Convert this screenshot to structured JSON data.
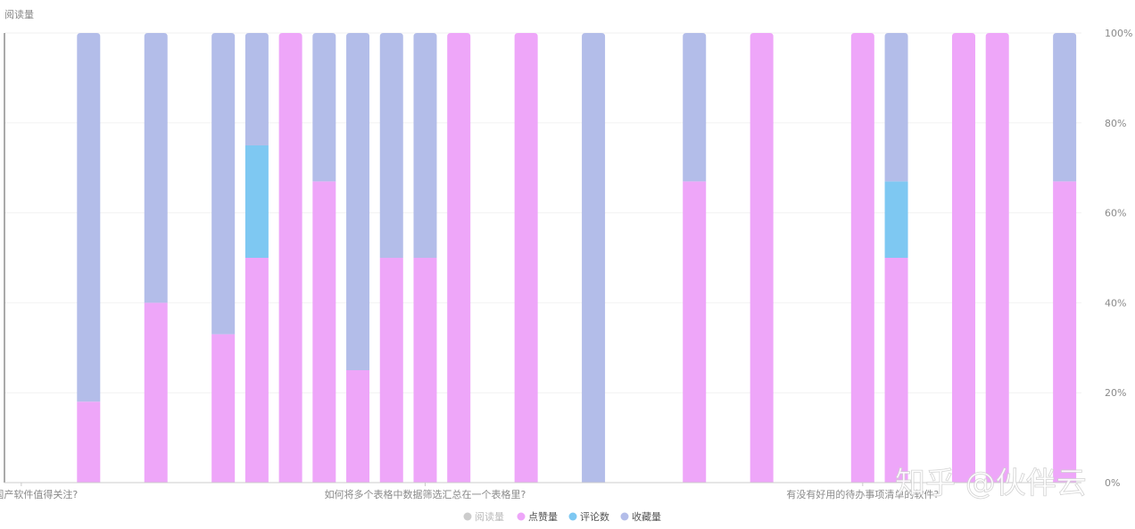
{
  "watermark": "知乎 @伙伴云",
  "chart_data": {
    "type": "bar",
    "stacked": true,
    "percent_stacked": true,
    "ylabel": "阅读量",
    "ylim": [
      0,
      100
    ],
    "yticks": [
      "0%",
      "20%",
      "40%",
      "60%",
      "80%",
      "100%"
    ],
    "y_axis_position": "right",
    "grid": true,
    "legend_position": "bottom-center",
    "x_tick_labels": [
      {
        "category_index": 0,
        "text": "优秀的国产软件值得关注?"
      },
      {
        "category_index": 12,
        "text": "如何将多个表格中数据筛选汇总在一个表格里?"
      },
      {
        "category_index": 25,
        "text": "有没有好用的待办事项清单的软件?"
      }
    ],
    "series": [
      {
        "name": "阅读量",
        "color": "#c0c0c0",
        "hidden": true,
        "values": [
          0,
          0,
          0,
          0,
          0,
          0,
          0,
          0,
          0,
          0,
          0,
          0,
          0,
          0,
          0,
          0,
          0,
          0,
          0,
          0,
          0,
          0,
          0,
          0,
          0,
          0,
          0,
          0,
          0,
          0,
          0,
          0
        ]
      },
      {
        "name": "点赞量",
        "color": "#eea6f9",
        "values": [
          0,
          0,
          18,
          0,
          40,
          0,
          33,
          50,
          100,
          67,
          25,
          50,
          50,
          100,
          0,
          100,
          0,
          0,
          0,
          0,
          67,
          0,
          100,
          0,
          0,
          100,
          50,
          0,
          100,
          100,
          0,
          67
        ]
      },
      {
        "name": "评论数",
        "color": "#7ec8f2",
        "values": [
          0,
          0,
          0,
          0,
          0,
          0,
          0,
          25,
          0,
          0,
          0,
          0,
          0,
          0,
          0,
          0,
          0,
          0,
          0,
          0,
          0,
          0,
          0,
          0,
          0,
          0,
          17,
          0,
          0,
          0,
          0,
          0
        ]
      },
      {
        "name": "收藏量",
        "color": "#b3bde9",
        "values": [
          0,
          0,
          82,
          0,
          60,
          0,
          67,
          25,
          0,
          33,
          75,
          50,
          50,
          0,
          0,
          0,
          0,
          100,
          0,
          0,
          33,
          0,
          0,
          0,
          0,
          0,
          33,
          0,
          0,
          0,
          0,
          33
        ]
      }
    ]
  }
}
